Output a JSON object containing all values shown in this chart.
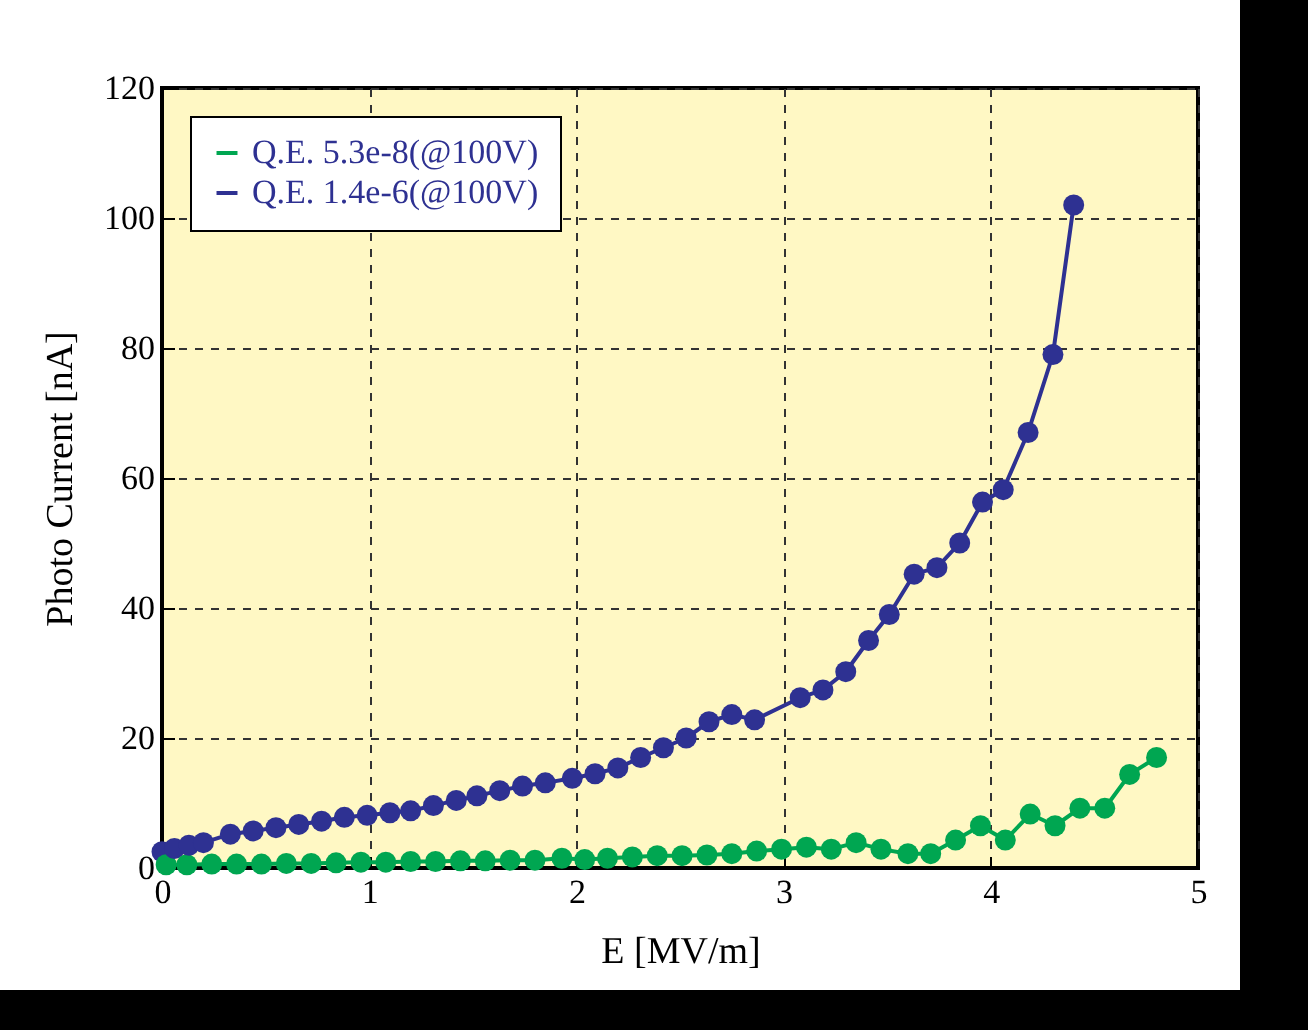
{
  "chart_data": {
    "type": "line",
    "xlabel": "E [MV/m]",
    "ylabel": "Photo Current [nA]",
    "xlim": [
      0,
      5
    ],
    "xticks": [
      0,
      1,
      2,
      3,
      4,
      5
    ],
    "ylim": [
      0,
      120
    ],
    "yticks": [
      0,
      20,
      40,
      60,
      80,
      100,
      120
    ],
    "grid": true,
    "legend": "top left",
    "marker": "circle",
    "line_style": "solid",
    "series": [
      {
        "name": "Q.E. 5.3e-8(@100V)",
        "color": "#00a651",
        "x": [
          0.02,
          0.12,
          0.24,
          0.36,
          0.48,
          0.6,
          0.72,
          0.84,
          0.96,
          1.08,
          1.2,
          1.32,
          1.44,
          1.56,
          1.68,
          1.8,
          1.93,
          2.04,
          2.15,
          2.27,
          2.39,
          2.51,
          2.63,
          2.75,
          2.87,
          2.99,
          3.11,
          3.23,
          3.35,
          3.47,
          3.6,
          3.71,
          3.83,
          3.95,
          4.07,
          4.19,
          4.31,
          4.43,
          4.55,
          4.67,
          4.8
        ],
        "values": [
          0.5,
          0.5,
          0.6,
          0.6,
          0.6,
          0.7,
          0.7,
          0.8,
          0.9,
          0.9,
          1.0,
          1.0,
          1.1,
          1.1,
          1.2,
          1.2,
          1.5,
          1.3,
          1.5,
          1.7,
          1.9,
          1.9,
          2.0,
          2.2,
          2.6,
          2.9,
          3.2,
          2.9,
          3.9,
          2.9,
          2.2,
          2.2,
          4.3,
          6.5,
          4.3,
          8.3,
          6.5,
          9.2,
          9.2,
          14.4,
          17
        ]
      },
      {
        "name": "Q.E. 1.4e-6(@100V)",
        "color": "#2e3192",
        "x": [
          0,
          0.06,
          0.13,
          0.2,
          0.33,
          0.44,
          0.55,
          0.66,
          0.77,
          0.88,
          0.99,
          1.1,
          1.2,
          1.31,
          1.42,
          1.52,
          1.63,
          1.74,
          1.85,
          1.98,
          2.09,
          2.2,
          2.31,
          2.42,
          2.53,
          2.64,
          2.75,
          2.86,
          3.08,
          3.19,
          3.3,
          3.41,
          3.51,
          3.63,
          3.74,
          3.85,
          3.96,
          4.06,
          4.18,
          4.3,
          4.4
        ],
        "values": [
          2.5,
          3,
          3.5,
          3.9,
          5.2,
          5.7,
          6.2,
          6.7,
          7.2,
          7.8,
          8.1,
          8.5,
          8.8,
          9.6,
          10.4,
          11.1,
          11.9,
          12.6,
          13.1,
          13.8,
          14.5,
          15.4,
          17,
          18.5,
          20,
          22.5,
          23.6,
          22.8,
          26.2,
          27.4,
          30.2,
          35,
          39,
          45.2,
          46.2,
          50,
          56.3,
          58.2,
          67,
          79,
          102
        ]
      }
    ]
  }
}
